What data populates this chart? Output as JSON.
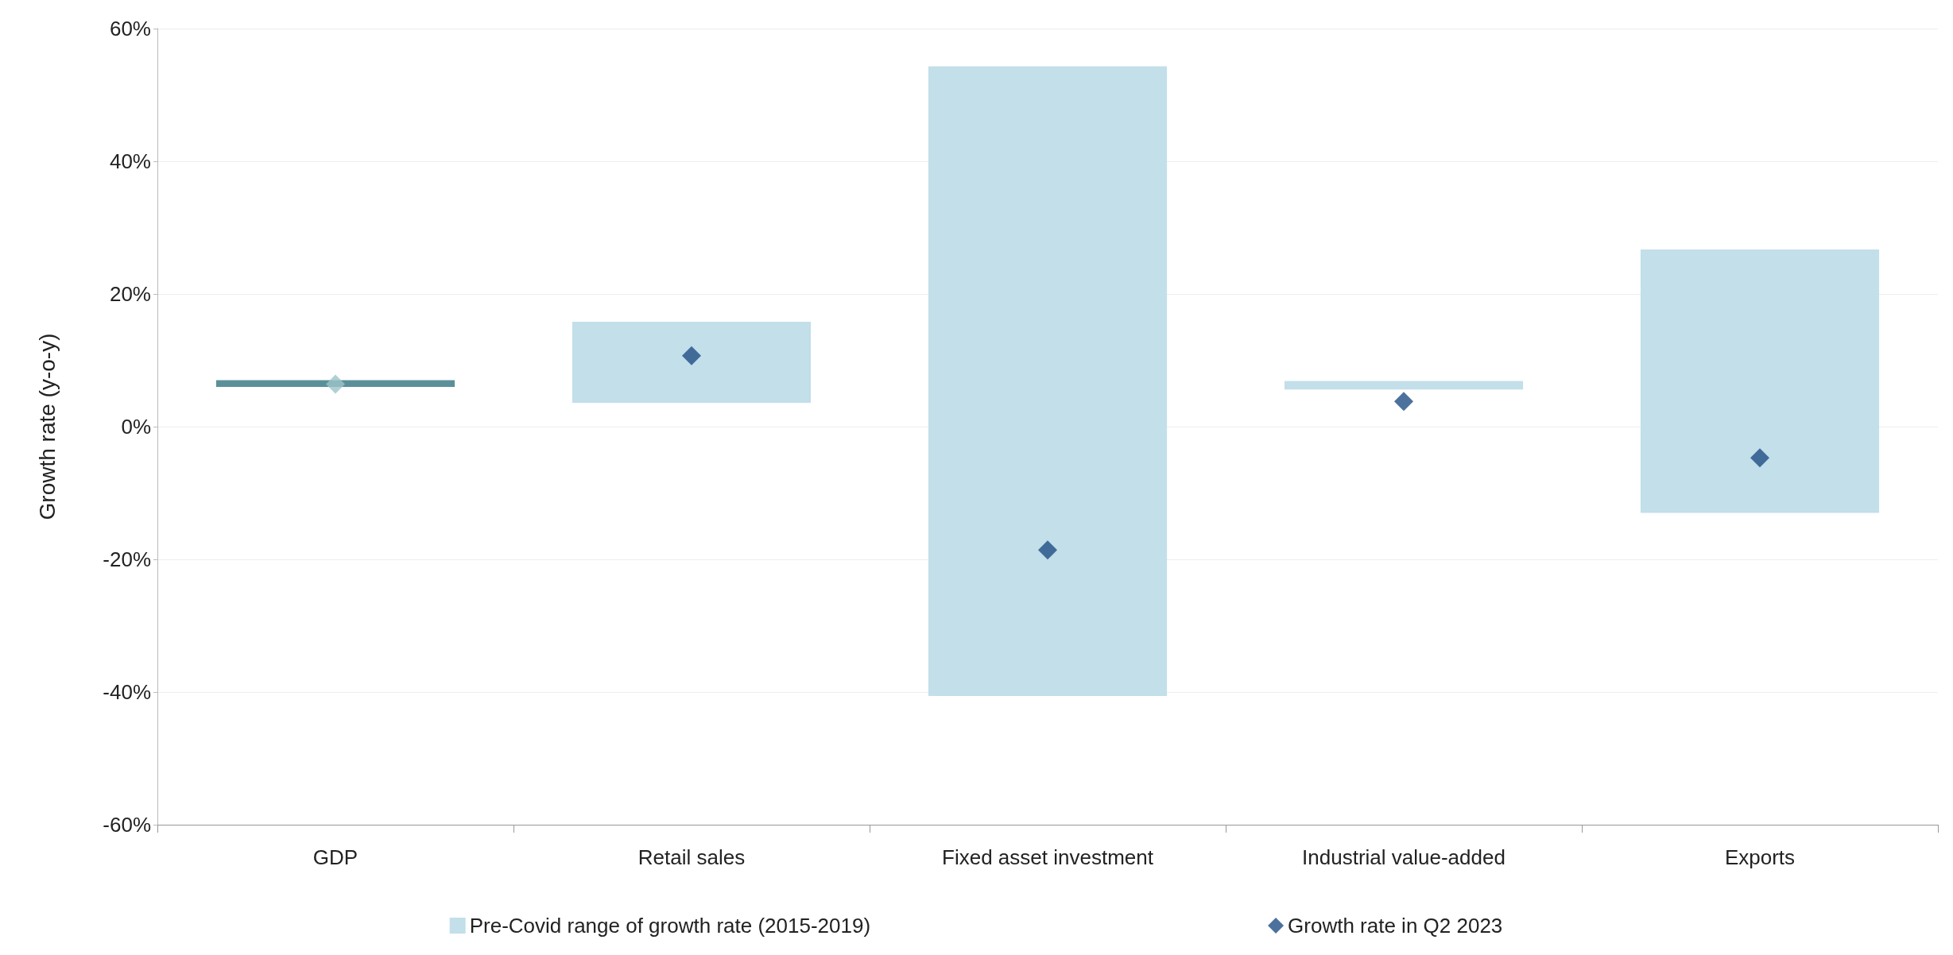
{
  "chart_data": {
    "type": "bar",
    "ylabel": "Growth rate (y-o-y)",
    "categories": [
      "GDP",
      "Retail sales",
      "Fixed asset investment",
      "Industrial value-added",
      "Exports"
    ],
    "series": [
      {
        "name": "Pre-Covid range of growth rate (2015-2019)",
        "color": "#c2dfea",
        "colors": [
          "#5b9099",
          "#c2dfea",
          "#c2dfea",
          "#c2dfea",
          "#c2dfea"
        ],
        "base": [
          6.0,
          3.6,
          -40.6,
          5.6,
          -13.0
        ],
        "values": [
          1.0,
          12.2,
          94.9,
          1.3,
          39.7
        ]
      },
      {
        "type": "scatter",
        "name": "Growth rate in Q2 2023",
        "color": "#1f4e85",
        "colors": [
          "#9cc4c9",
          "#1f4e85",
          "#1f4e85",
          "#1f4e85",
          "#1f4e85"
        ],
        "x": [
          "GDP",
          "Retail sales",
          "Fixed asset investment",
          "Industrial value-added",
          "Exports"
        ],
        "values": [
          6.4,
          10.7,
          -18.6,
          3.8,
          -4.7
        ]
      }
    ],
    "ylim": [
      -60,
      60
    ],
    "yticks": [
      {
        "value": -60,
        "label": "-60%"
      },
      {
        "value": -40,
        "label": "-40%"
      },
      {
        "value": -20,
        "label": "-20%"
      },
      {
        "value": 0,
        "label": "0%"
      },
      {
        "value": 20,
        "label": "20%"
      },
      {
        "value": 40,
        "label": "40%"
      },
      {
        "value": 60,
        "label": "60%"
      }
    ],
    "grid": "y",
    "legend": "bottom",
    "marker": "diamond"
  }
}
